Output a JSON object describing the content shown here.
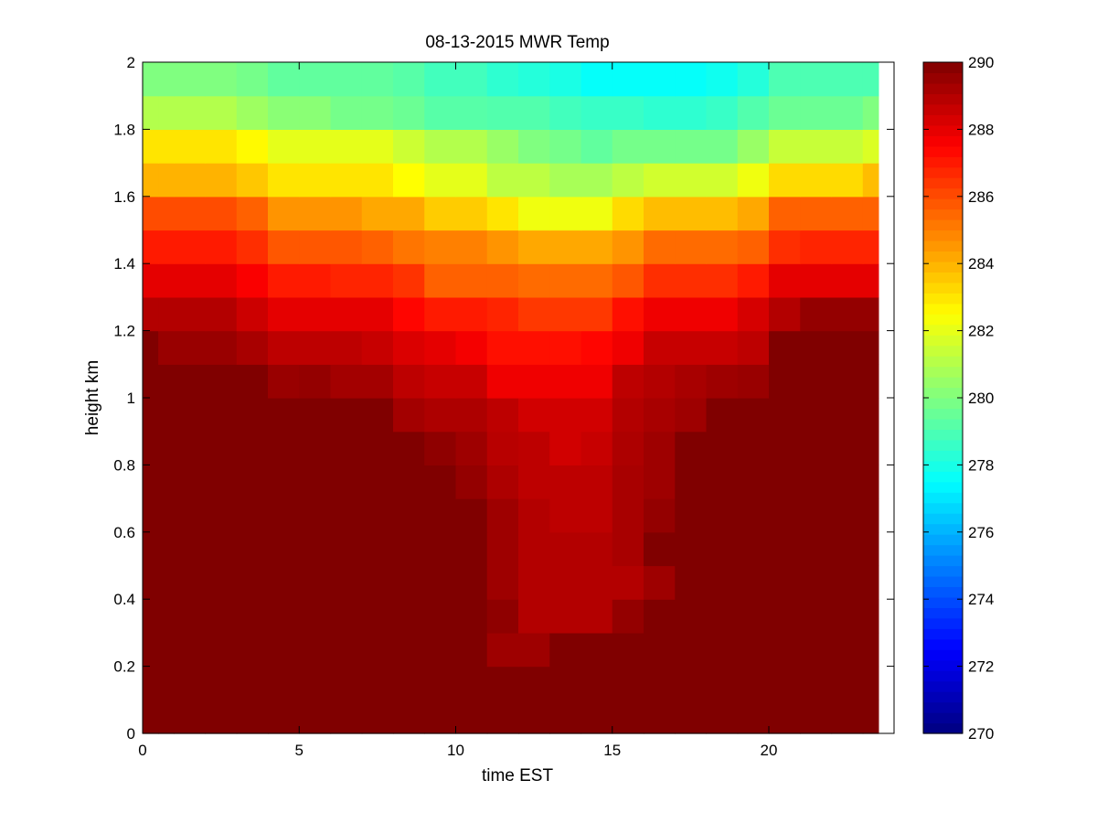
{
  "chart_data": {
    "type": "heatmap",
    "title": "08-13-2015 MWR Temp",
    "xlabel": "time EST",
    "ylabel": "height km",
    "xlim": [
      0,
      24
    ],
    "ylim": [
      0,
      2
    ],
    "xticks": [
      0,
      5,
      10,
      15,
      20
    ],
    "xtick_labels": [
      "0",
      "5",
      "10",
      "15",
      "20"
    ],
    "yticks": [
      0,
      0.2,
      0.4,
      0.6,
      0.8,
      1,
      1.2,
      1.4,
      1.6,
      1.8,
      2
    ],
    "ytick_labels": [
      "0",
      "0.2",
      "0.4",
      "0.6",
      "0.8",
      "1",
      "1.2",
      "1.4",
      "1.6",
      "1.8",
      "2"
    ],
    "colorbar": {
      "min": 270,
      "max": 290,
      "ticks": [
        270,
        272,
        274,
        276,
        278,
        280,
        282,
        284,
        286,
        288,
        290
      ],
      "tick_labels": [
        "270",
        "272",
        "274",
        "276",
        "278",
        "280",
        "282",
        "284",
        "286",
        "288",
        "290"
      ],
      "colormap": "jet"
    },
    "x": [
      0,
      0.5,
      1,
      2,
      3,
      4,
      5,
      6,
      7,
      8,
      9,
      10,
      11,
      12,
      13,
      14,
      15,
      16,
      17,
      18,
      19,
      20,
      21,
      22,
      23
    ],
    "y": [
      0.1,
      0.2,
      0.3,
      0.4,
      0.5,
      0.6,
      0.7,
      0.8,
      0.9,
      1.0,
      1.1,
      1.2,
      1.3,
      1.4,
      1.5,
      1.6,
      1.7,
      1.8,
      1.9,
      2.0
    ],
    "z": [
      [
        290,
        290,
        290,
        290,
        290,
        290,
        290,
        290,
        290,
        290,
        290,
        290,
        290,
        290,
        290,
        290,
        290,
        290,
        290,
        290,
        290,
        290,
        290,
        290,
        290
      ],
      [
        290,
        290,
        290,
        290,
        290,
        290,
        290,
        290,
        290,
        290,
        290,
        290,
        290,
        290,
        290,
        290,
        290,
        290,
        290,
        290,
        290,
        290,
        290,
        290,
        290
      ],
      [
        290,
        290,
        290,
        290,
        290,
        290,
        290,
        290,
        290,
        290,
        290,
        290,
        289.4,
        289.4,
        290,
        290,
        290,
        290,
        290,
        290,
        290,
        290,
        290,
        290,
        290
      ],
      [
        290,
        290,
        290,
        290,
        290,
        290,
        290,
        290,
        290,
        290,
        290,
        290,
        289.7,
        289,
        289,
        289,
        289.6,
        290,
        290,
        290,
        290,
        290,
        290,
        290,
        290
      ],
      [
        290,
        290,
        290,
        290,
        290,
        290,
        290,
        290,
        290,
        290,
        290,
        290,
        289.4,
        289,
        289,
        289,
        289,
        289.4,
        290,
        290,
        290,
        290,
        290,
        290,
        290
      ],
      [
        290,
        290,
        290,
        290,
        290,
        290,
        290,
        290,
        290,
        290,
        290,
        290,
        289.4,
        289,
        289,
        289,
        289.2,
        290,
        290,
        290,
        290,
        290,
        290,
        290,
        290
      ],
      [
        290,
        290,
        290,
        290,
        290,
        290,
        290,
        290,
        290,
        290,
        290,
        290,
        289.4,
        289,
        288.8,
        288.8,
        289.2,
        289.6,
        290,
        290,
        290,
        290,
        290,
        290,
        290
      ],
      [
        290,
        290,
        290,
        290,
        290,
        290,
        290,
        290,
        290,
        290,
        290,
        289.6,
        289.1,
        288.8,
        288.8,
        288.8,
        289.2,
        289.4,
        290,
        290,
        290,
        290,
        290,
        290,
        290
      ],
      [
        290,
        290,
        290,
        290,
        290,
        290,
        290,
        290,
        290,
        290,
        289.7,
        289.4,
        288.9,
        288.8,
        288.4,
        288.6,
        289.1,
        289.4,
        290,
        290,
        290,
        290,
        290,
        290,
        290
      ],
      [
        290,
        290,
        290,
        290,
        290,
        290,
        290,
        290,
        290,
        289.3,
        289.1,
        289.1,
        288.8,
        288.4,
        288.4,
        288.4,
        289,
        289.2,
        289.4,
        290,
        290,
        290,
        290,
        290,
        290
      ],
      [
        290,
        290,
        290,
        290,
        290,
        289.5,
        289.6,
        289.3,
        289.3,
        288.8,
        288.6,
        288.6,
        287.8,
        287.8,
        287.8,
        287.8,
        288.8,
        289,
        289.2,
        289.4,
        289.5,
        290,
        290,
        290,
        290
      ],
      [
        290,
        289.5,
        289.5,
        289.5,
        289.2,
        288.8,
        288.8,
        288.8,
        288.6,
        288.2,
        288,
        287.7,
        287.2,
        287.2,
        287.2,
        287.4,
        287.8,
        288.6,
        288.6,
        288.6,
        288.8,
        290,
        290,
        290,
        290
      ],
      [
        289,
        289,
        289,
        289,
        288.5,
        288,
        288,
        288,
        288,
        287.4,
        287,
        287,
        286.8,
        286.4,
        286.4,
        286.4,
        287.2,
        287.8,
        287.8,
        287.8,
        288.3,
        289,
        289.6,
        289.6,
        289.6
      ],
      [
        288,
        288,
        288,
        288,
        287.6,
        287,
        287,
        286.8,
        286.8,
        286.5,
        285.6,
        285.6,
        285.6,
        285.4,
        285.4,
        285.4,
        285.8,
        286.6,
        286.6,
        286.6,
        287,
        288,
        288,
        288,
        288
      ],
      [
        287,
        287,
        287,
        287,
        286.6,
        285.8,
        285.8,
        285.8,
        285.6,
        285.2,
        285,
        285,
        284.6,
        284.2,
        284.2,
        284.2,
        284.6,
        285.4,
        285.4,
        285.4,
        285.6,
        286.6,
        286.8,
        286.8,
        286.8
      ],
      [
        286,
        286,
        286,
        286,
        285.6,
        284.6,
        284.6,
        284.6,
        284.2,
        284.2,
        283.5,
        283.5,
        283,
        282.2,
        282.2,
        282.2,
        283.2,
        283.8,
        283.8,
        283.8,
        284.2,
        285.6,
        285.6,
        285.6,
        285.6
      ],
      [
        284,
        284,
        284,
        284,
        283.6,
        283,
        283,
        283,
        283,
        282.5,
        282,
        282,
        281.2,
        281.2,
        280.8,
        280.8,
        281.2,
        281.6,
        281.6,
        281.6,
        282.2,
        283.2,
        283.2,
        283.2,
        283.8
      ],
      [
        283,
        283,
        283,
        283,
        282.6,
        282,
        282,
        282,
        282,
        281.5,
        281,
        281,
        280.5,
        280,
        279.8,
        279.4,
        279.8,
        279.8,
        279.8,
        279.8,
        280.5,
        281.4,
        281.4,
        281.4,
        281.8
      ],
      [
        281,
        281,
        281,
        281,
        280.6,
        280.2,
        280.2,
        279.8,
        279.8,
        279.6,
        279.2,
        279.2,
        279.1,
        279.1,
        278.8,
        278.6,
        278.6,
        278.4,
        278.4,
        278.6,
        279.1,
        279.6,
        279.6,
        279.6,
        280
      ],
      [
        280,
        280,
        280,
        280,
        279.8,
        279.4,
        279.4,
        279.4,
        279.4,
        279.2,
        278.8,
        278.8,
        278.4,
        278.2,
        278,
        277.6,
        277.6,
        277.6,
        277.6,
        277.8,
        278.2,
        279,
        279,
        279,
        279
      ]
    ]
  }
}
